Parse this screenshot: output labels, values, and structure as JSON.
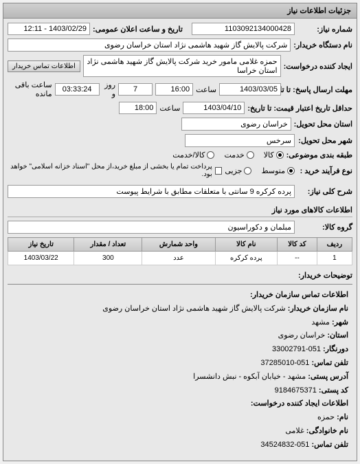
{
  "panel_title": "جزئیات اطلاعات نیاز",
  "need_number_label": "شماره نیاز:",
  "need_number": "1103092134000428",
  "announce_label": "تاریخ و ساعت اعلان عمومی:",
  "announce_value": "1403/02/29 - 12:11",
  "buyer_unit_label": "نام دستگاه خریدار:",
  "buyer_unit": "شرکت پالایش گاز شهید هاشمی نژاد   استان خراسان رضوی",
  "requester_label": "ایجاد کننده درخواست:",
  "requester": "حمزه غلامی مامور خرید شرکت پالایش گاز شهید هاشمی نژاد   استان خراسا",
  "contact_btn": "اطلاعات تماس خریدار",
  "deadline_label": "مهلت ارسال پاسخ: تا تاریخ:",
  "deadline_date": "1403/03/05",
  "deadline_time_lbl": "ساعت",
  "deadline_time": "16:00",
  "days_remaining": "7",
  "days_remaining_lbl": "روز و",
  "time_remaining": "03:33:24",
  "time_remaining_lbl": "ساعت باقی مانده",
  "validity_label": "حداقل تاریخ اعتبار قیمت: تا تاریخ:",
  "validity_date": "1403/04/10",
  "validity_time": "18:00",
  "delivery_province_lbl": "استان محل تحویل:",
  "delivery_province": "خراسان رضوی",
  "delivery_city_lbl": "شهر محل تحویل:",
  "delivery_city": "سرخس",
  "subject_group_lbl": "طبقه بندی موضوعی:",
  "radio_goods": "کالا",
  "radio_service": "خدمت",
  "radio_goods_service": "کالا/خدمت",
  "process_type_lbl": "نوع فرآیند خرید :",
  "radio_medium": "متوسط",
  "radio_partial": "جزیی",
  "process_note": "پرداخت تمام یا بخشی از مبلغ خرید،از محل \"اسناد خزانه اسلامی\" خواهد بود.",
  "need_desc_lbl": "شرح کلی نیاز:",
  "need_desc": "پرده کرکره 9 سانتی با متعلقات مطابق با شرایط پیوست",
  "goods_info_title": "اطلاعات کالاهای مورد نیاز",
  "goods_group_lbl": "گروه کالا:",
  "goods_group": "مبلمان و دکوراسیون",
  "table": {
    "columns": [
      "ردیف",
      "کد کالا",
      "نام کالا",
      "واحد شمارش",
      "تعداد / مقدار",
      "تاریخ نیاز"
    ],
    "rows": [
      [
        "1",
        "--",
        "پرده کرکره",
        "عدد",
        "300",
        "1403/03/22"
      ]
    ]
  },
  "buyer_notes_lbl": "توضیحات خریدار:",
  "contact_title": "اطلاعات تماس سازمان خریدار:",
  "org_name_lbl": "نام سازمان خریدار:",
  "org_name": "شرکت پالایش گاز شهید هاشمی نژاد استان خراسان رضوی",
  "city_lbl": "شهر:",
  "city": "مشهد",
  "province_lbl": "استان:",
  "province": "خراسان رضوی",
  "fax_lbl": "دورنگار:",
  "fax": "051-33002791",
  "phone_lbl": "تلفن تماس:",
  "phone": "051-37285010",
  "address_lbl": "آدرس پستی:",
  "address": "مشهد - خیابان آبکوه - نبش دانشسرا",
  "postal_lbl": "کد پستی:",
  "postal": "9184675371",
  "creator_title": "اطلاعات ایجاد کننده درخواست:",
  "name_lbl": "نام:",
  "name_val": "حمزه",
  "family_lbl": "نام خانوادگی:",
  "family_val": "غلامی",
  "creator_phone_lbl": "تلفن تماس:",
  "creator_phone": "051-34524832"
}
